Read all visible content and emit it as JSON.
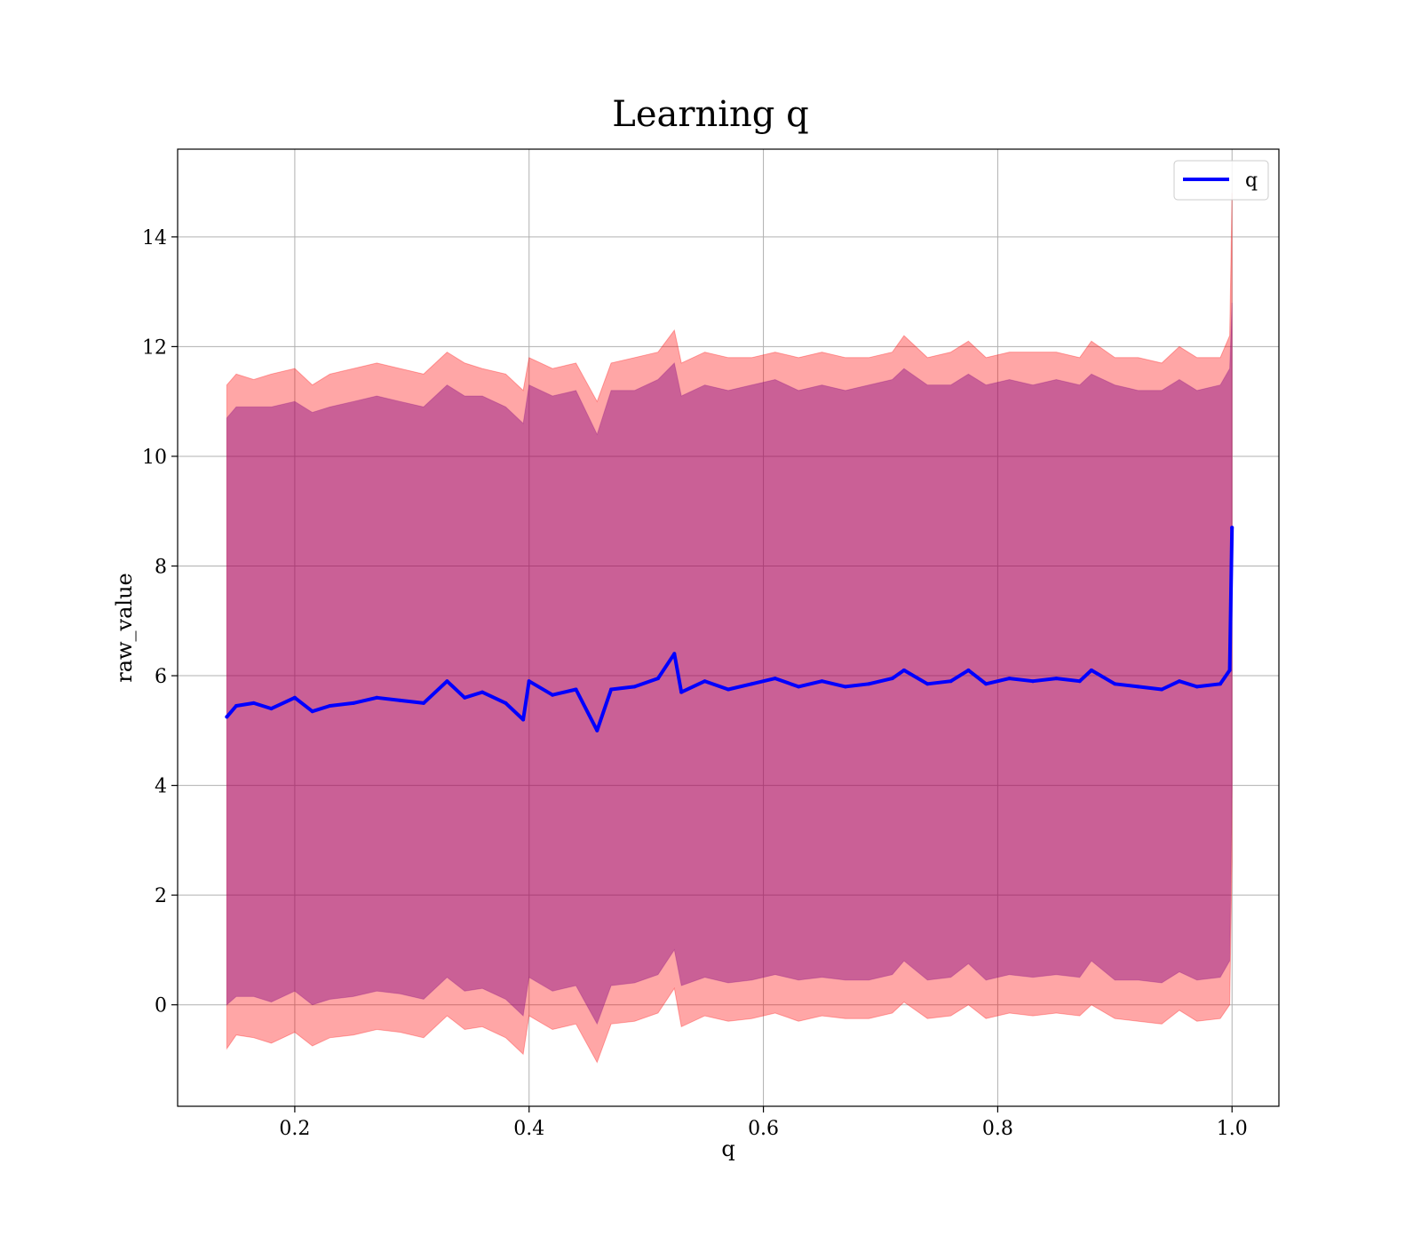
{
  "chart_data": {
    "type": "line",
    "title": "Learning q",
    "xlabel": "q",
    "ylabel": "raw_value",
    "xlim": [
      0.1,
      1.04
    ],
    "ylim": [
      -1.85,
      15.6
    ],
    "xticks": [
      0.2,
      0.4,
      0.6,
      0.8,
      1.0
    ],
    "xtick_labels": [
      "0.2",
      "0.4",
      "0.6",
      "0.8",
      "1.0"
    ],
    "yticks": [
      0,
      2,
      4,
      6,
      8,
      10,
      12,
      14
    ],
    "ytick_labels": [
      "0",
      "2",
      "4",
      "6",
      "8",
      "10",
      "12",
      "14"
    ],
    "grid": true,
    "legend": {
      "position": "top-right",
      "entries": [
        "q"
      ]
    },
    "x": [
      0.142,
      0.15,
      0.165,
      0.18,
      0.2,
      0.215,
      0.23,
      0.25,
      0.27,
      0.29,
      0.31,
      0.33,
      0.345,
      0.36,
      0.38,
      0.395,
      0.4,
      0.42,
      0.44,
      0.458,
      0.47,
      0.49,
      0.51,
      0.524,
      0.53,
      0.55,
      0.57,
      0.59,
      0.61,
      0.63,
      0.65,
      0.67,
      0.69,
      0.71,
      0.72,
      0.74,
      0.76,
      0.775,
      0.79,
      0.81,
      0.83,
      0.85,
      0.87,
      0.88,
      0.9,
      0.92,
      0.94,
      0.955,
      0.97,
      0.99,
      0.998,
      1.0
    ],
    "series": [
      {
        "name": "q",
        "color": "#0000ff",
        "y": [
          5.25,
          5.45,
          5.5,
          5.4,
          5.6,
          5.35,
          5.45,
          5.5,
          5.6,
          5.55,
          5.5,
          5.9,
          5.6,
          5.7,
          5.5,
          5.2,
          5.9,
          5.65,
          5.75,
          5.0,
          5.75,
          5.8,
          5.95,
          6.4,
          5.7,
          5.9,
          5.75,
          5.85,
          5.95,
          5.8,
          5.9,
          5.8,
          5.85,
          5.95,
          6.1,
          5.85,
          5.9,
          6.1,
          5.85,
          5.95,
          5.9,
          5.95,
          5.9,
          6.1,
          5.85,
          5.8,
          5.75,
          5.9,
          5.8,
          5.85,
          6.1,
          8.7
        ],
        "band_primary": {
          "color": "#ff0000",
          "upper": [
            11.3,
            11.5,
            11.4,
            11.5,
            11.6,
            11.3,
            11.5,
            11.6,
            11.7,
            11.6,
            11.5,
            11.9,
            11.7,
            11.6,
            11.5,
            11.2,
            11.8,
            11.6,
            11.7,
            11.0,
            11.7,
            11.8,
            11.9,
            12.3,
            11.7,
            11.9,
            11.8,
            11.8,
            11.9,
            11.8,
            11.9,
            11.8,
            11.8,
            11.9,
            12.2,
            11.8,
            11.9,
            12.1,
            11.8,
            11.9,
            11.9,
            11.9,
            11.8,
            12.1,
            11.8,
            11.8,
            11.7,
            12.0,
            11.8,
            11.8,
            12.2,
            14.8
          ],
          "lower": [
            -0.8,
            -0.55,
            -0.6,
            -0.7,
            -0.5,
            -0.75,
            -0.6,
            -0.55,
            -0.45,
            -0.5,
            -0.6,
            -0.2,
            -0.45,
            -0.4,
            -0.6,
            -0.9,
            -0.2,
            -0.45,
            -0.35,
            -1.05,
            -0.35,
            -0.3,
            -0.15,
            0.3,
            -0.4,
            -0.2,
            -0.3,
            -0.25,
            -0.15,
            -0.3,
            -0.2,
            -0.25,
            -0.25,
            -0.15,
            0.05,
            -0.25,
            -0.2,
            0.0,
            -0.25,
            -0.15,
            -0.2,
            -0.15,
            -0.2,
            0.0,
            -0.25,
            -0.3,
            -0.35,
            -0.1,
            -0.3,
            -0.25,
            0.0,
            2.6
          ]
        },
        "band_secondary": {
          "color": "#800080",
          "upper": [
            10.7,
            10.9,
            10.9,
            10.9,
            11.0,
            10.8,
            10.9,
            11.0,
            11.1,
            11.0,
            10.9,
            11.3,
            11.1,
            11.1,
            10.9,
            10.6,
            11.3,
            11.1,
            11.2,
            10.4,
            11.2,
            11.2,
            11.4,
            11.7,
            11.1,
            11.3,
            11.2,
            11.3,
            11.4,
            11.2,
            11.3,
            11.2,
            11.3,
            11.4,
            11.6,
            11.3,
            11.3,
            11.5,
            11.3,
            11.4,
            11.3,
            11.4,
            11.3,
            11.5,
            11.3,
            11.2,
            11.2,
            11.4,
            11.2,
            11.3,
            11.6,
            12.8
          ],
          "lower": [
            0.0,
            0.15,
            0.15,
            0.05,
            0.25,
            0.0,
            0.1,
            0.15,
            0.25,
            0.2,
            0.1,
            0.5,
            0.25,
            0.3,
            0.1,
            -0.2,
            0.5,
            0.25,
            0.35,
            -0.35,
            0.35,
            0.4,
            0.55,
            1.0,
            0.35,
            0.5,
            0.4,
            0.45,
            0.55,
            0.45,
            0.5,
            0.45,
            0.45,
            0.55,
            0.8,
            0.45,
            0.5,
            0.75,
            0.45,
            0.55,
            0.5,
            0.55,
            0.5,
            0.8,
            0.45,
            0.45,
            0.4,
            0.6,
            0.45,
            0.5,
            0.8,
            4.0
          ]
        }
      }
    ]
  }
}
